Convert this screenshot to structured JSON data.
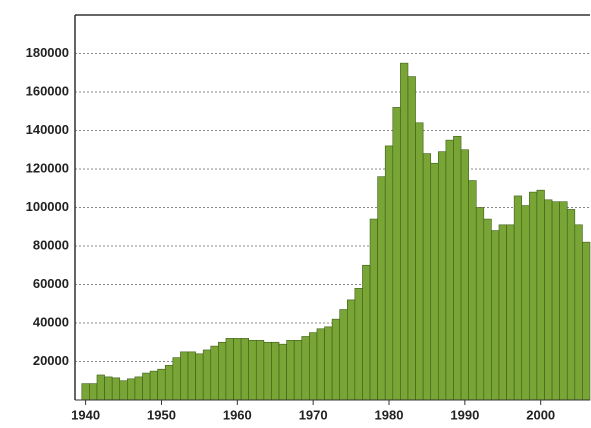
{
  "chart_data": {
    "type": "bar",
    "x": [
      1940,
      1941,
      1942,
      1943,
      1944,
      1945,
      1946,
      1947,
      1948,
      1949,
      1950,
      1951,
      1952,
      1953,
      1954,
      1955,
      1956,
      1957,
      1958,
      1959,
      1960,
      1961,
      1962,
      1963,
      1964,
      1965,
      1966,
      1967,
      1968,
      1969,
      1970,
      1971,
      1972,
      1973,
      1974,
      1975,
      1976,
      1977,
      1978,
      1979,
      1980,
      1981,
      1982,
      1983,
      1984,
      1985,
      1986,
      1987,
      1988,
      1989,
      1990,
      1991,
      1992,
      1993,
      1994,
      1995,
      1996,
      1997,
      1998,
      1999,
      2000,
      2001,
      2002,
      2003,
      2004,
      2005,
      2006
    ],
    "values": [
      8500,
      8500,
      13000,
      12000,
      11500,
      10000,
      11000,
      12000,
      14000,
      15000,
      16000,
      18000,
      22000,
      25000,
      25000,
      24000,
      26000,
      28000,
      30000,
      32000,
      32000,
      32000,
      31000,
      31000,
      30000,
      30000,
      29000,
      31000,
      31000,
      33000,
      35000,
      37000,
      38000,
      42000,
      47000,
      52000,
      58000,
      70000,
      94000,
      116000,
      132000,
      152000,
      175000,
      168000,
      144000,
      128000,
      123000,
      129000,
      135000,
      137000,
      130000,
      114000,
      100000,
      94000,
      88000,
      91000,
      91000,
      106000,
      101000,
      108000,
      109000,
      104000,
      103000,
      103000,
      99000,
      91000,
      82000
    ],
    "color": "#78a536",
    "xlim": [
      1938.6,
      2006.5
    ],
    "xticks": [
      1940,
      1950,
      1960,
      1970,
      1980,
      1990,
      2000
    ],
    "ylim": [
      0,
      200000
    ],
    "yticks": [
      20000,
      40000,
      60000,
      80000,
      100000,
      120000,
      140000,
      160000,
      180000
    ],
    "grid": true
  }
}
